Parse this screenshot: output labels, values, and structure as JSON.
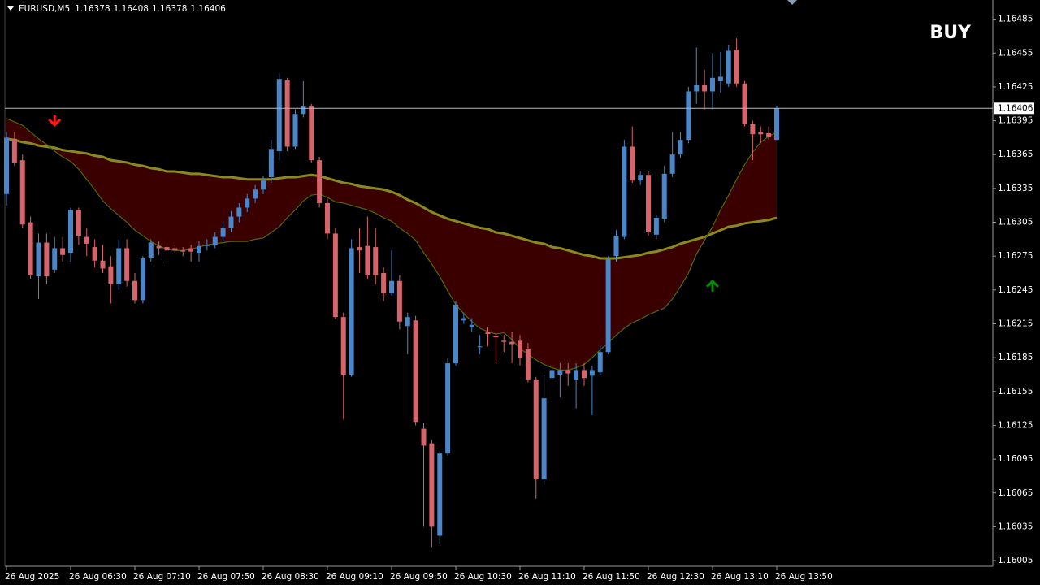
{
  "chart_data": {
    "type": "candlestick",
    "symbol": "EURUSD,M5",
    "signal_text": "BUY",
    "signal_color": "#0a8a0a",
    "up_color": "#4a86c8",
    "down_color": "#d6646a",
    "fill_color": "#3a0000",
    "categories": [
      "26 Aug 2025",
      null,
      null,
      null,
      null,
      null,
      null,
      null,
      "26 Aug 06:30",
      null,
      null,
      null,
      null,
      null,
      null,
      null,
      "26 Aug 07:10",
      null,
      null,
      null,
      null,
      null,
      null,
      null,
      "26 Aug 07:50",
      null,
      null,
      null,
      null,
      null,
      null,
      null,
      "26 Aug 08:30",
      null,
      null,
      null,
      null,
      null,
      null,
      null,
      "26 Aug 09:10",
      null,
      null,
      null,
      null,
      null,
      null,
      null,
      "26 Aug 09:50",
      null,
      null,
      null,
      null,
      null,
      null,
      null,
      "26 Aug 10:30",
      null,
      null,
      null,
      null,
      null,
      null,
      null,
      "26 Aug 11:10",
      null,
      null,
      null,
      null,
      null,
      null,
      null,
      "26 Aug 11:50",
      null,
      null,
      null,
      null,
      null,
      null,
      null,
      "26 Aug 12:30",
      null,
      null,
      null,
      null,
      null,
      null,
      null,
      "26 Aug 13:10",
      null,
      null,
      null,
      null,
      null,
      null,
      null,
      "26 Aug 13:50"
    ],
    "open": [
      1.1633,
      1.16379,
      1.1636,
      1.16305,
      1.16257,
      1.16287,
      1.16263,
      1.16282,
      1.16278,
      1.16316,
      1.16292,
      1.16283,
      1.16271,
      1.16266,
      1.1625,
      1.16282,
      1.16253,
      1.16236,
      1.16273,
      1.16284,
      1.16283,
      1.16282,
      1.1628,
      1.16282,
      1.16278,
      1.16284,
      1.16285,
      1.16292,
      1.163,
      1.1631,
      1.16318,
      1.16326,
      1.16334,
      1.16345,
      1.16368,
      1.16431,
      1.16372,
      1.16401,
      1.16408,
      1.1636,
      1.16322,
      1.16295,
      1.16221,
      1.1617,
      1.16283,
      1.16284,
      1.16283,
      1.1626,
      1.16242,
      1.16253,
      1.16213,
      1.16218,
      1.16122,
      1.16109,
      1.16027,
      1.161,
      1.1618,
      1.16218,
      1.16212,
      1.16195,
      1.16208,
      1.16204,
      1.162,
      1.16199,
      1.162,
      1.16193,
      1.16165,
      1.16077,
      1.16167,
      1.1617,
      1.16174,
      1.16165,
      1.16174,
      1.16169,
      1.16172,
      1.1619,
      1.16275,
      1.16292,
      1.16372,
      1.16342,
      1.16347,
      1.16294,
      1.16308,
      1.16348,
      1.16365,
      1.16378,
      1.16421,
      1.16427,
      1.16421,
      1.1643,
      1.16428,
      1.16458,
      1.16428,
      1.16392,
      1.16385,
      1.16384,
      1.16378
    ],
    "high": [
      1.16385,
      1.16385,
      1.16365,
      1.1631,
      1.16295,
      1.16295,
      1.16292,
      1.16292,
      1.16318,
      1.16318,
      1.163,
      1.1629,
      1.16285,
      1.16275,
      1.1629,
      1.1629,
      1.1626,
      1.16275,
      1.1629,
      1.16288,
      1.16287,
      1.16285,
      1.16283,
      1.16285,
      1.16288,
      1.1629,
      1.16296,
      1.16305,
      1.16315,
      1.16322,
      1.1633,
      1.16338,
      1.16346,
      1.16378,
      1.16437,
      1.16433,
      1.16405,
      1.1643,
      1.1641,
      1.16363,
      1.16326,
      1.163,
      1.16225,
      1.1629,
      1.163,
      1.1631,
      1.163,
      1.16265,
      1.1628,
      1.16258,
      1.16225,
      1.16222,
      1.16127,
      1.16112,
      1.16102,
      1.16185,
      1.16235,
      1.16225,
      1.1622,
      1.16205,
      1.16212,
      1.16208,
      1.16205,
      1.16208,
      1.16205,
      1.16198,
      1.16168,
      1.1617,
      1.16178,
      1.1618,
      1.1618,
      1.1618,
      1.1618,
      1.16178,
      1.16195,
      1.16275,
      1.16298,
      1.16378,
      1.1639,
      1.1635,
      1.1635,
      1.16312,
      1.16355,
      1.16385,
      1.16385,
      1.16425,
      1.1646,
      1.1644,
      1.16455,
      1.16456,
      1.16462,
      1.16468,
      1.1643,
      1.16395,
      1.1639,
      1.1639,
      1.16408
    ],
    "low": [
      1.1632,
      1.16355,
      1.163,
      1.16255,
      1.16237,
      1.1625,
      1.1626,
      1.1627,
      1.1627,
      1.16285,
      1.16275,
      1.16265,
      1.1626,
      1.16233,
      1.16245,
      1.16248,
      1.16233,
      1.16233,
      1.1627,
      1.16276,
      1.1627,
      1.16278,
      1.16275,
      1.1627,
      1.1627,
      1.1628,
      1.16282,
      1.16288,
      1.16296,
      1.16305,
      1.16314,
      1.16322,
      1.1633,
      1.1634,
      1.1636,
      1.16368,
      1.1637,
      1.16398,
      1.16358,
      1.16318,
      1.1629,
      1.16219,
      1.1613,
      1.16168,
      1.1626,
      1.16255,
      1.1625,
      1.16235,
      1.1624,
      1.1621,
      1.16188,
      1.16125,
      1.16035,
      1.16017,
      1.1602,
      1.16098,
      1.16178,
      1.16215,
      1.16208,
      1.16188,
      1.16195,
      1.1618,
      1.1619,
      1.1618,
      1.16178,
      1.16163,
      1.1606,
      1.16072,
      1.16145,
      1.1615,
      1.1616,
      1.1614,
      1.1616,
      1.16134,
      1.1617,
      1.16188,
      1.1627,
      1.1629,
      1.1634,
      1.16338,
      1.16293,
      1.1629,
      1.16305,
      1.16345,
      1.16362,
      1.16375,
      1.1641,
      1.16405,
      1.16405,
      1.1642,
      1.16425,
      1.16425,
      1.1639,
      1.1636,
      1.16375,
      1.16378,
      1.16378
    ],
    "close": [
      1.1638,
      1.16358,
      1.16303,
      1.16258,
      1.16287,
      1.16257,
      1.16282,
      1.16276,
      1.16316,
      1.16293,
      1.16286,
      1.16271,
      1.16264,
      1.1625,
      1.16282,
      1.16253,
      1.16236,
      1.16273,
      1.16287,
      1.16282,
      1.1628,
      1.1628,
      1.16279,
      1.16279,
      1.16284,
      1.16285,
      1.16292,
      1.163,
      1.1631,
      1.16318,
      1.16326,
      1.16334,
      1.16342,
      1.1637,
      1.16432,
      1.16372,
      1.16401,
      1.16408,
      1.1636,
      1.16322,
      1.16295,
      1.16221,
      1.1617,
      1.16282,
      1.1628,
      1.16258,
      1.16258,
      1.16242,
      1.16253,
      1.16217,
      1.16221,
      1.16128,
      1.16107,
      1.16035,
      1.161,
      1.1618,
      1.16232,
      1.1622,
      1.16214,
      1.16195,
      1.16206,
      1.16203,
      1.16199,
      1.16197,
      1.16185,
      1.16165,
      1.16077,
      1.16149,
      1.16174,
      1.16174,
      1.16171,
      1.16174,
      1.16167,
      1.16174,
      1.1619,
      1.16272,
      1.16293,
      1.16372,
      1.16342,
      1.16347,
      1.16296,
      1.16309,
      1.16348,
      1.16365,
      1.16378,
      1.16421,
      1.16427,
      1.16421,
      1.16433,
      1.16434,
      1.16457,
      1.16428,
      1.16392,
      1.16383,
      1.16383,
      1.16381,
      1.16406
    ],
    "lines": [
      {
        "color": "#8a8a1c",
        "values": [
          1.16379,
          1.16378,
          1.16376,
          1.16375,
          1.16373,
          1.16372,
          1.16371,
          1.16369,
          1.16368,
          1.16367,
          1.16366,
          1.16364,
          1.16363,
          1.1636,
          1.16359,
          1.16358,
          1.16356,
          1.16355,
          1.16353,
          1.16352,
          1.1635,
          1.1635,
          1.16349,
          1.16348,
          1.16348,
          1.16347,
          1.16346,
          1.16345,
          1.16345,
          1.16344,
          1.16343,
          1.16343,
          1.16343,
          1.16343,
          1.16344,
          1.16345,
          1.16345,
          1.16346,
          1.16347,
          1.16346,
          1.16344,
          1.16342,
          1.1634,
          1.16339,
          1.16337,
          1.16336,
          1.16335,
          1.16334,
          1.16332,
          1.16329,
          1.16325,
          1.16322,
          1.16318,
          1.16314,
          1.16311,
          1.16308,
          1.16306,
          1.16304,
          1.16302,
          1.163,
          1.16299,
          1.16296,
          1.16295,
          1.16293,
          1.16291,
          1.16289,
          1.16287,
          1.16286,
          1.16283,
          1.16282,
          1.1628,
          1.16278,
          1.16276,
          1.16275,
          1.16273,
          1.16273,
          1.16273,
          1.16274,
          1.16275,
          1.16276,
          1.16278,
          1.16279,
          1.16281,
          1.16283,
          1.16286,
          1.16288,
          1.1629,
          1.16292,
          1.16295,
          1.16298,
          1.16301,
          1.16302,
          1.16304,
          1.16305,
          1.16306,
          1.16307,
          1.16309
        ]
      },
      {
        "color": "#4f6a00",
        "values": [
          1.16397,
          1.16394,
          1.16391,
          1.16385,
          1.16379,
          1.16374,
          1.16368,
          1.16363,
          1.16359,
          1.16352,
          1.16343,
          1.16334,
          1.16324,
          1.16317,
          1.16311,
          1.16305,
          1.16298,
          1.16293,
          1.16288,
          1.16284,
          1.16281,
          1.1628,
          1.1628,
          1.16281,
          1.16283,
          1.16285,
          1.16286,
          1.16287,
          1.16288,
          1.16288,
          1.16288,
          1.1629,
          1.16291,
          1.16296,
          1.16301,
          1.16309,
          1.16316,
          1.16324,
          1.16329,
          1.1633,
          1.16327,
          1.16323,
          1.16322,
          1.1632,
          1.16318,
          1.16316,
          1.16313,
          1.16309,
          1.16306,
          1.163,
          1.16295,
          1.16289,
          1.16278,
          1.16268,
          1.16257,
          1.16244,
          1.16232,
          1.16224,
          1.16217,
          1.16211,
          1.16208,
          1.16206,
          1.16207,
          1.16201,
          1.16193,
          1.16188,
          1.16183,
          1.16179,
          1.16176,
          1.16174,
          1.16174,
          1.16176,
          1.16179,
          1.16185,
          1.16192,
          1.16198,
          1.16205,
          1.16211,
          1.16216,
          1.16219,
          1.16223,
          1.16226,
          1.16229,
          1.16237,
          1.16248,
          1.1626,
          1.16277,
          1.16289,
          1.16301,
          1.16316,
          1.16329,
          1.16343,
          1.16356,
          1.16367,
          1.16376,
          1.16381,
          1.16385
        ]
      }
    ],
    "arrows": [
      {
        "index": 6,
        "price": 1.16394,
        "direction": "down",
        "color": "#ff1a1a"
      },
      {
        "index": 88,
        "price": 1.1625,
        "direction": "up",
        "color": "#0a8a0a"
      }
    ],
    "ylim": [
      1.16,
      1.16502
    ],
    "yticks": [
      1.16485,
      1.16455,
      1.16425,
      1.16395,
      1.16365,
      1.16335,
      1.16305,
      1.16275,
      1.16245,
      1.16215,
      1.16185,
      1.16155,
      1.16125,
      1.16095,
      1.16065,
      1.16035,
      1.16005
    ]
  }
}
